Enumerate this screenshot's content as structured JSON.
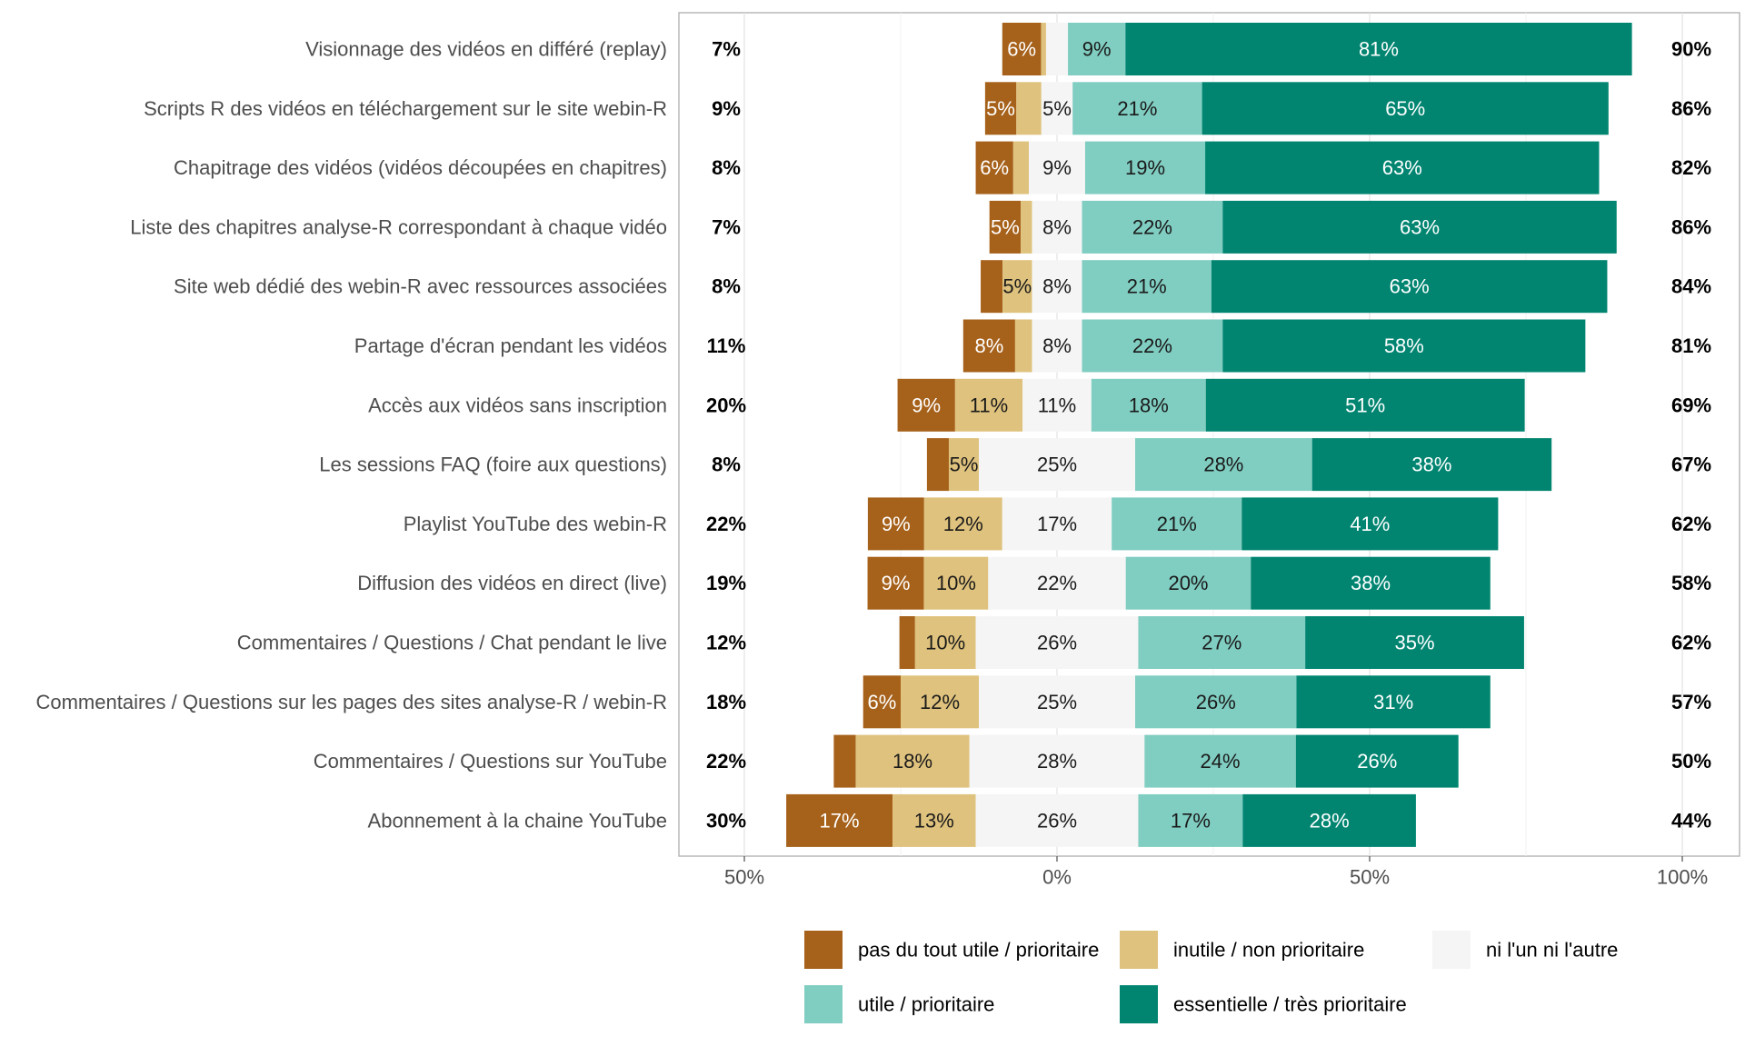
{
  "chart_data": {
    "type": "bar",
    "orientation": "horizontal",
    "stacked": "diverging",
    "categories": [
      "Visionnage des vidéos en différé (replay)",
      "Scripts R des vidéos en téléchargement sur le site webin-R",
      "Chapitrage des vidéos (vidéos découpées en chapitres)",
      "Liste des chapitres analyse-R correspondant à chaque vidéo",
      "Site web dédié des webin-R avec ressources associées",
      "Partage d'écran pendant les vidéos",
      "Accès aux vidéos sans inscription",
      "Les sessions FAQ (foire aux questions)",
      "Playlist YouTube des webin-R",
      "Diffusion des vidéos en direct (live)",
      "Commentaires / Questions / Chat pendant le live",
      "Commentaires / Questions sur les pages des sites analyse-R / webin-R",
      "Commentaires / Questions sur YouTube",
      "Abonnement à la chaine YouTube"
    ],
    "series": [
      {
        "name": "pas du tout utile / prioritaire",
        "color": "#a6611a",
        "values": [
          6.2,
          5,
          6,
          5,
          3.5,
          8.3,
          9.2,
          3.5,
          9,
          9,
          2.5,
          6,
          3.5,
          17
        ]
      },
      {
        "name": "inutile / non prioritaire",
        "color": "#dfc27d",
        "values": [
          0.8,
          4,
          2.5,
          1.8,
          4.7,
          2.7,
          10.8,
          4.8,
          12.5,
          10.3,
          9.7,
          12.5,
          18.2,
          13.3
        ]
      },
      {
        "name": "ni l'un ni l'autre",
        "color": "#f5f5f5",
        "values": [
          3.5,
          5,
          9,
          8,
          8,
          8,
          11,
          25,
          17.5,
          22,
          26,
          25,
          28,
          26
        ]
      },
      {
        "name": "utile / prioritaire",
        "color": "#80cdc1",
        "values": [
          9.2,
          20.7,
          19.2,
          22.5,
          20.7,
          22.5,
          18.3,
          28.3,
          20.8,
          20,
          26.7,
          25.8,
          24.2,
          16.7
        ]
      },
      {
        "name": "essentielle / très prioritaire",
        "color": "#018571",
        "values": [
          81,
          65,
          63,
          63,
          63.3,
          58,
          51,
          38.3,
          41,
          38.3,
          35,
          31,
          26,
          27.7
        ]
      }
    ],
    "labels": [
      [
        "6%",
        "",
        "",
        "9%",
        "81%"
      ],
      [
        "5%",
        "",
        "5%",
        "21%",
        "65%"
      ],
      [
        "6%",
        "",
        "9%",
        "19%",
        "63%"
      ],
      [
        "5%",
        "",
        "8%",
        "22%",
        "63%"
      ],
      [
        "",
        "5%",
        "8%",
        "21%",
        "63%"
      ],
      [
        "8%",
        "",
        "8%",
        "22%",
        "58%"
      ],
      [
        "9%",
        "11%",
        "11%",
        "18%",
        "51%"
      ],
      [
        "",
        "5%",
        "25%",
        "28%",
        "38%"
      ],
      [
        "9%",
        "12%",
        "17%",
        "21%",
        "41%"
      ],
      [
        "9%",
        "10%",
        "22%",
        "20%",
        "38%"
      ],
      [
        "",
        "10%",
        "26%",
        "27%",
        "35%"
      ],
      [
        "6%",
        "12%",
        "25%",
        "26%",
        "31%"
      ],
      [
        "",
        "18%",
        "28%",
        "24%",
        "26%"
      ],
      [
        "17%",
        "13%",
        "26%",
        "17%",
        "28%"
      ]
    ],
    "left_totals": [
      "7%",
      "9%",
      "8%",
      "7%",
      "8%",
      "11%",
      "20%",
      "8%",
      "22%",
      "19%",
      "12%",
      "18%",
      "22%",
      "30%"
    ],
    "right_totals": [
      "90%",
      "86%",
      "82%",
      "86%",
      "84%",
      "81%",
      "69%",
      "67%",
      "62%",
      "58%",
      "62%",
      "57%",
      "50%",
      "44%"
    ],
    "xlim": [
      -50,
      100
    ],
    "xticks": [
      -50,
      0,
      50,
      100
    ],
    "xtick_labels": [
      "50%",
      "0%",
      "50%",
      "100%"
    ],
    "title": "",
    "xlabel": "",
    "ylabel": "",
    "grid": "vertical major and minor gridlines",
    "legend": {
      "position": "bottom",
      "columns": 3
    }
  }
}
